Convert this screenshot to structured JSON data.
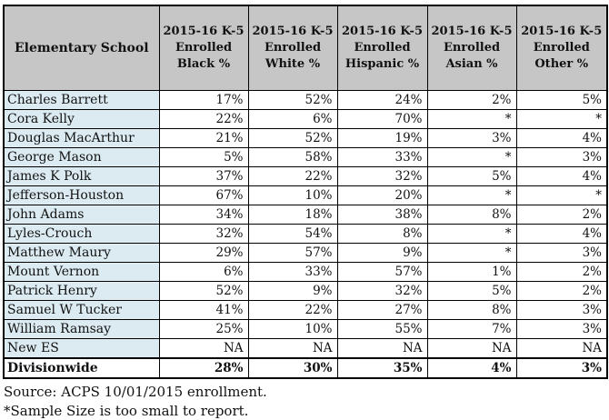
{
  "chart_data": {
    "type": "table",
    "title": "",
    "columns": [
      "Elementary School",
      "2015-16 K-5 Enrolled Black %",
      "2015-16 K-5 Enrolled White %",
      "2015-16 K-5 Enrolled Hispanic %",
      "2015-16 K-5 Enrolled Asian %",
      "2015-16 K-5 Enrolled Other %"
    ],
    "rows": [
      [
        "Charles Barrett",
        "17%",
        "52%",
        "24%",
        "2%",
        "5%"
      ],
      [
        "Cora Kelly",
        "22%",
        "6%",
        "70%",
        "*",
        "*"
      ],
      [
        "Douglas MacArthur",
        "21%",
        "52%",
        "19%",
        "3%",
        "4%"
      ],
      [
        "George Mason",
        "5%",
        "58%",
        "33%",
        "*",
        "3%"
      ],
      [
        "James K Polk",
        "37%",
        "22%",
        "32%",
        "5%",
        "4%"
      ],
      [
        "Jefferson-Houston",
        "67%",
        "10%",
        "20%",
        "*",
        "*"
      ],
      [
        "John Adams",
        "34%",
        "18%",
        "38%",
        "8%",
        "2%"
      ],
      [
        "Lyles-Crouch",
        "32%",
        "54%",
        "8%",
        "*",
        "4%"
      ],
      [
        "Matthew Maury",
        "29%",
        "57%",
        "9%",
        "*",
        "3%"
      ],
      [
        "Mount Vernon",
        "6%",
        "33%",
        "57%",
        "1%",
        "2%"
      ],
      [
        "Patrick Henry",
        "52%",
        "9%",
        "32%",
        "5%",
        "2%"
      ],
      [
        "Samuel W Tucker",
        "41%",
        "22%",
        "27%",
        "8%",
        "3%"
      ],
      [
        "William Ramsay",
        "25%",
        "10%",
        "55%",
        "7%",
        "3%"
      ],
      [
        "New ES",
        "NA",
        "NA",
        "NA",
        "NA",
        "NA"
      ],
      [
        "Divisionwide",
        "28%",
        "30%",
        "35%",
        "4%",
        "3%"
      ]
    ],
    "total_row_label": "Divisionwide",
    "footnotes": [
      "Source: ACPS 10/01/2015 enrollment.",
      "*Sample Size is too small to report."
    ]
  },
  "header": {
    "school_label": "Elementary School",
    "column_lines": [
      "2015-16 K-5\nEnrolled\nBlack %",
      "2015-16 K-5\nEnrolled\nWhite %",
      "2015-16 K-5\nEnrolled\nHispanic %",
      "2015-16 K-5\nEnrolled\nAsian %",
      "2015-16 K-5\nEnrolled\nOther %"
    ]
  },
  "footer": {
    "source": "Source: ACPS 10/01/2015 enrollment.",
    "note": "*Sample Size is too small to report."
  },
  "colors": {
    "header_bg": "#c6c6c6",
    "school_col_bg": "#dcebf2",
    "border": "#000000"
  }
}
